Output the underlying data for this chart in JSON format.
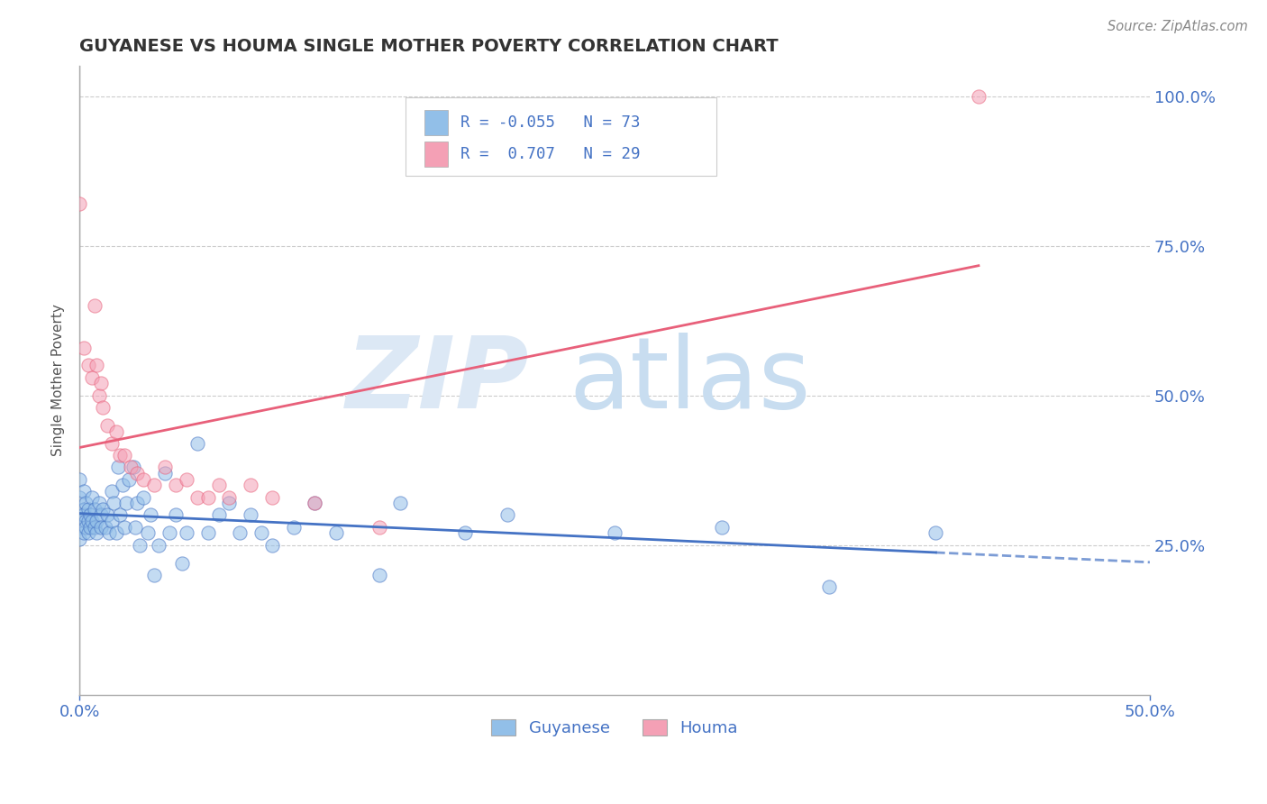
{
  "title": "GUYANESE VS HOUMA SINGLE MOTHER POVERTY CORRELATION CHART",
  "source": "Source: ZipAtlas.com",
  "ylabel": "Single Mother Poverty",
  "xlim": [
    0.0,
    0.5
  ],
  "ylim": [
    0.0,
    1.05
  ],
  "legend_labels_bottom": [
    "Guyanese",
    "Houma"
  ],
  "guyanese_R": "-0.055",
  "guyanese_N": "73",
  "houma_R": "0.707",
  "houma_N": "29",
  "guyanese_color": "#92bfe8",
  "houma_color": "#f4a0b5",
  "guyanese_line_color": "#4472c4",
  "houma_line_color": "#e8607a",
  "background_color": "#ffffff",
  "guyanese_x": [
    0.0,
    0.0,
    0.0,
    0.0,
    0.0,
    0.002,
    0.002,
    0.002,
    0.002,
    0.003,
    0.003,
    0.003,
    0.004,
    0.004,
    0.004,
    0.005,
    0.005,
    0.006,
    0.006,
    0.007,
    0.007,
    0.008,
    0.008,
    0.009,
    0.01,
    0.01,
    0.011,
    0.012,
    0.013,
    0.014,
    0.015,
    0.015,
    0.016,
    0.017,
    0.018,
    0.019,
    0.02,
    0.021,
    0.022,
    0.023,
    0.025,
    0.026,
    0.027,
    0.028,
    0.03,
    0.032,
    0.033,
    0.035,
    0.037,
    0.04,
    0.042,
    0.045,
    0.048,
    0.05,
    0.055,
    0.06,
    0.065,
    0.07,
    0.075,
    0.08,
    0.085,
    0.09,
    0.1,
    0.11,
    0.12,
    0.14,
    0.15,
    0.18,
    0.2,
    0.25,
    0.3,
    0.35,
    0.4
  ],
  "guyanese_y": [
    0.36,
    0.33,
    0.3,
    0.28,
    0.26,
    0.34,
    0.31,
    0.3,
    0.27,
    0.32,
    0.29,
    0.28,
    0.31,
    0.29,
    0.27,
    0.3,
    0.28,
    0.29,
    0.33,
    0.28,
    0.31,
    0.27,
    0.29,
    0.32,
    0.3,
    0.28,
    0.31,
    0.28,
    0.3,
    0.27,
    0.34,
    0.29,
    0.32,
    0.27,
    0.38,
    0.3,
    0.35,
    0.28,
    0.32,
    0.36,
    0.38,
    0.28,
    0.32,
    0.25,
    0.33,
    0.27,
    0.3,
    0.2,
    0.25,
    0.37,
    0.27,
    0.3,
    0.22,
    0.27,
    0.42,
    0.27,
    0.3,
    0.32,
    0.27,
    0.3,
    0.27,
    0.25,
    0.28,
    0.32,
    0.27,
    0.2,
    0.32,
    0.27,
    0.3,
    0.27,
    0.28,
    0.18,
    0.27
  ],
  "houma_x": [
    0.002,
    0.004,
    0.006,
    0.007,
    0.008,
    0.009,
    0.01,
    0.011,
    0.013,
    0.015,
    0.017,
    0.019,
    0.021,
    0.024,
    0.027,
    0.03,
    0.035,
    0.04,
    0.045,
    0.05,
    0.055,
    0.06,
    0.065,
    0.07,
    0.08,
    0.09,
    0.11,
    0.14,
    0.42
  ],
  "houma_y": [
    0.58,
    0.55,
    0.53,
    0.65,
    0.55,
    0.5,
    0.52,
    0.48,
    0.45,
    0.42,
    0.44,
    0.4,
    0.4,
    0.38,
    0.37,
    0.36,
    0.35,
    0.38,
    0.35,
    0.36,
    0.33,
    0.33,
    0.35,
    0.33,
    0.35,
    0.33,
    0.32,
    0.28,
    1.0
  ],
  "houma_x_extra": [
    0.0
  ],
  "houma_y_extra": [
    0.82
  ]
}
